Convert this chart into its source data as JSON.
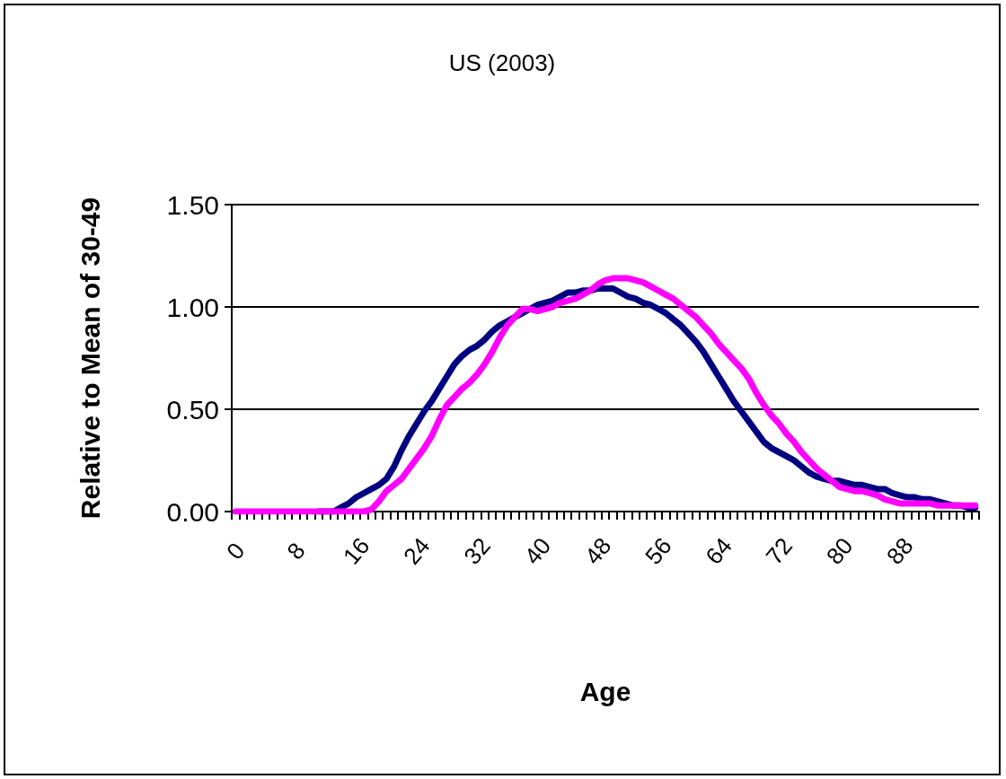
{
  "chart_data": {
    "type": "line",
    "title": "US (2003)",
    "xlabel": "Age",
    "ylabel": "Relative to Mean of 30-49",
    "categories": [
      "0",
      null,
      null,
      null,
      null,
      null,
      null,
      null,
      "8",
      null,
      null,
      null,
      null,
      null,
      null,
      null,
      "16",
      null,
      null,
      null,
      null,
      null,
      null,
      null,
      "24",
      null,
      null,
      null,
      null,
      null,
      null,
      null,
      "32",
      null,
      null,
      null,
      null,
      null,
      null,
      null,
      "40",
      null,
      null,
      null,
      null,
      null,
      null,
      null,
      "48",
      null,
      null,
      null,
      null,
      null,
      null,
      null,
      "56",
      null,
      null,
      null,
      null,
      null,
      null,
      null,
      "64",
      null,
      null,
      null,
      null,
      null,
      null,
      null,
      "72",
      null,
      null,
      null,
      null,
      null,
      null,
      null,
      "80",
      null,
      null,
      null,
      null,
      null,
      null,
      null,
      "88",
      null,
      null,
      null,
      null,
      null,
      null,
      null,
      null,
      null,
      null
    ],
    "series": [
      {
        "color": "#000080",
        "values": [
          null,
          null,
          null,
          null,
          null,
          null,
          null,
          null,
          null,
          null,
          null,
          0,
          0,
          0,
          0.02,
          0.04,
          0.07,
          0.09,
          0.11,
          0.13,
          0.16,
          0.22,
          0.3,
          0.37,
          0.43,
          0.49,
          0.54,
          0.6,
          0.66,
          0.72,
          0.76,
          0.79,
          0.81,
          0.84,
          0.88,
          0.91,
          0.93,
          0.95,
          0.97,
          0.99,
          1.01,
          1.02,
          1.03,
          1.05,
          1.07,
          1.07,
          1.08,
          1.08,
          1.09,
          1.09,
          1.09,
          1.07,
          1.05,
          1.04,
          1.02,
          1.01,
          0.99,
          0.97,
          0.94,
          0.91,
          0.87,
          0.83,
          0.78,
          0.72,
          0.66,
          0.6,
          0.54,
          0.49,
          0.44,
          0.39,
          0.34,
          0.31,
          0.29,
          0.27,
          0.25,
          0.22,
          0.19,
          0.17,
          0.16,
          0.15,
          0.15,
          0.14,
          0.13,
          0.13,
          0.12,
          0.11,
          0.11,
          0.09,
          0.08,
          0.07,
          0.07,
          0.06,
          0.06,
          0.05,
          0.04,
          0.03,
          0.03,
          0.02,
          0.02
        ]
      },
      {
        "color": "#ff00ff",
        "values": [
          0,
          0,
          0,
          0,
          0,
          0,
          0,
          0,
          0,
          0,
          0,
          0,
          0,
          0,
          0,
          0,
          0,
          0,
          0.01,
          0.05,
          0.1,
          0.13,
          0.16,
          0.21,
          0.26,
          0.31,
          0.37,
          0.45,
          0.52,
          0.56,
          0.6,
          0.63,
          0.67,
          0.72,
          0.78,
          0.85,
          0.91,
          0.95,
          0.99,
          0.99,
          0.98,
          0.99,
          1.0,
          1.02,
          1.03,
          1.04,
          1.06,
          1.08,
          1.11,
          1.13,
          1.14,
          1.14,
          1.14,
          1.13,
          1.12,
          1.1,
          1.08,
          1.06,
          1.04,
          1.01,
          0.98,
          0.95,
          0.91,
          0.87,
          0.82,
          0.78,
          0.74,
          0.7,
          0.65,
          0.58,
          0.52,
          0.47,
          0.43,
          0.38,
          0.34,
          0.29,
          0.25,
          0.21,
          0.18,
          0.15,
          0.12,
          0.11,
          0.1,
          0.1,
          0.09,
          0.08,
          0.06,
          0.05,
          0.04,
          0.04,
          0.04,
          0.04,
          0.04,
          0.03,
          0.03,
          0.03,
          0.03,
          0.03,
          0.03
        ]
      }
    ],
    "ylim": [
      0,
      1.5
    ],
    "yticks": [
      {
        "value": 0,
        "label": "0.00"
      },
      {
        "value": 0.5,
        "label": "0.50"
      },
      {
        "value": 1,
        "label": "1.00"
      },
      {
        "value": 1.5,
        "label": "1.50"
      }
    ],
    "grid": "y",
    "marker": "none",
    "line_style": "solid"
  }
}
